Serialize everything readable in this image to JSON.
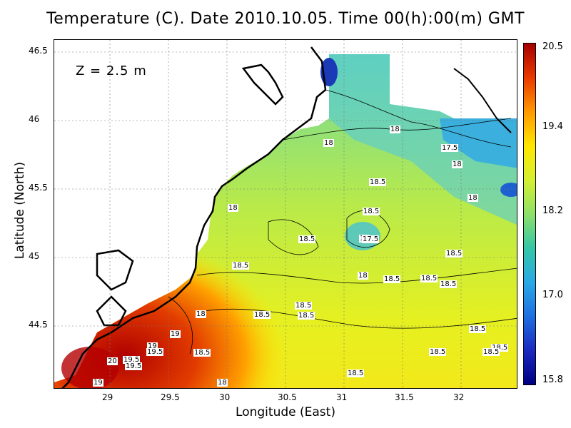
{
  "title": "Temperature (C). Date 2010.10.05. Time 00(h):00(m) GMT",
  "depth_label": "Z = 2.5 m",
  "xlabel": "Longitude (East)",
  "ylabel": "Latitude (North)",
  "x_ticks": [
    "29",
    "29.5",
    "30",
    "30.5",
    "31",
    "31.5",
    "32"
  ],
  "y_ticks": [
    "46.5",
    "46",
    "45.5",
    "45",
    "44.5"
  ],
  "colorbar": {
    "ticks": [
      "20.5",
      "19.4",
      "18.2",
      "17.0",
      "15.8"
    ],
    "colors": [
      "#a50000",
      "#e83a00",
      "#ff9900",
      "#ffe600",
      "#d6f030",
      "#8ee06a",
      "#35c6a6",
      "#2aa9e6",
      "#1f6fe0",
      "#1a2ac0",
      "#000080"
    ]
  },
  "contour_labels": [
    "18",
    "18",
    "17.5",
    "18",
    "18",
    "18.5",
    "18",
    "18.5",
    "18",
    "17.5",
    "18",
    "18.5",
    "18.5",
    "18.5",
    "18.5",
    "18.5",
    "18.5",
    "18.5",
    "18",
    "18.5",
    "18.5",
    "18.5",
    "18.5",
    "19",
    "19",
    "19.5",
    "18.5",
    "19.5",
    "20",
    "19.5",
    "19",
    "18.5",
    "18.5",
    "18.5",
    "18"
  ],
  "map_data": {
    "type": "filled-contour",
    "variable": "Temperature (C)",
    "xlim": [
      28.6,
      32.45
    ],
    "ylim": [
      44.05,
      46.55
    ],
    "value_range": [
      15.8,
      20.5
    ]
  }
}
